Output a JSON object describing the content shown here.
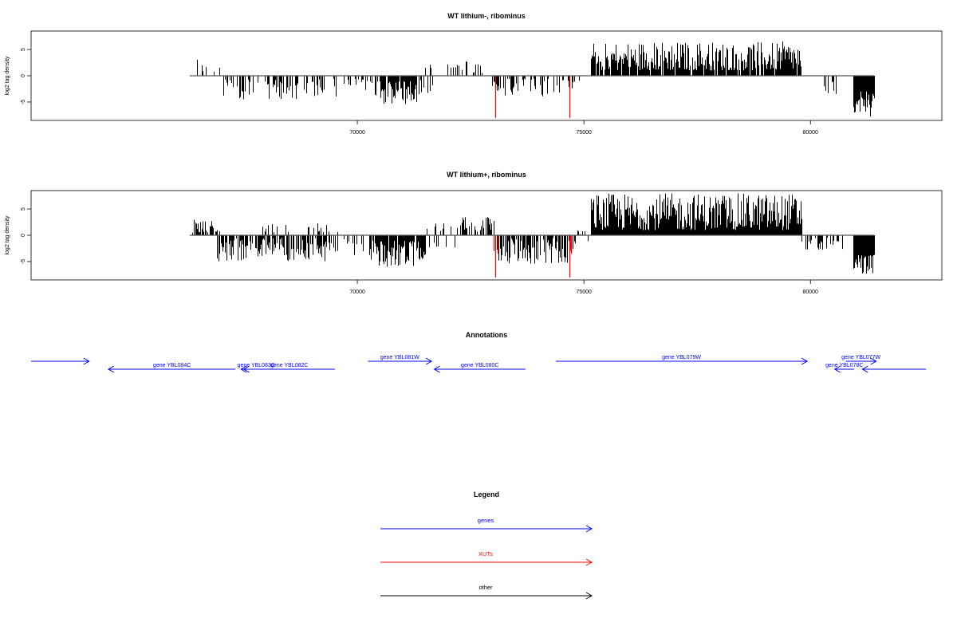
{
  "chart_data": [
    {
      "type": "bar",
      "title": "WT lithium-, ribominus",
      "ylabel": "log2 tag density",
      "xlim": [
        62800,
        82900
      ],
      "ylim": [
        -8.5,
        8.5
      ],
      "x_ticks": [
        70000,
        75000,
        80000
      ],
      "x_tick_labels": [
        "70000",
        "75000",
        "80000"
      ],
      "y_ticks": [
        -5,
        0,
        5
      ],
      "y_tick_labels": [
        "-5",
        "0",
        "5"
      ],
      "baseline_range": [
        66300,
        81400
      ],
      "signal_regions": [
        {
          "from": 66350,
          "to": 66950,
          "min": 0.5,
          "max": 3.5,
          "density": 0.25
        },
        {
          "from": 67000,
          "to": 69200,
          "min": -4.5,
          "max": -0.5,
          "density": 0.4
        },
        {
          "from": 69000,
          "to": 70600,
          "min": -4.0,
          "max": -0.5,
          "density": 0.3
        },
        {
          "from": 70500,
          "to": 71300,
          "min": -5.5,
          "max": -1.0,
          "density": 0.9
        },
        {
          "from": 71300,
          "to": 71700,
          "min": -3.5,
          "max": -0.5,
          "density": 0.3
        },
        {
          "from": 71500,
          "to": 72200,
          "min": 0.5,
          "max": 2.2,
          "density": 0.2
        },
        {
          "from": 72100,
          "to": 72900,
          "min": 0.5,
          "max": 3.0,
          "density": 0.35
        },
        {
          "from": 72900,
          "to": 74800,
          "min": -4.0,
          "max": -0.5,
          "density": 0.3
        },
        {
          "from": 74900,
          "to": 75100,
          "min": -1.0,
          "max": -0.5,
          "density": 0.2
        },
        {
          "from": 75150,
          "to": 79800,
          "min": 1.0,
          "max": 6.5,
          "density": 0.9
        },
        {
          "from": 80300,
          "to": 80600,
          "min": -3.5,
          "max": -0.5,
          "density": 0.3
        },
        {
          "from": 80950,
          "to": 81400,
          "min": -8.0,
          "max": -3.0,
          "density": 1.0
        }
      ],
      "highlight_bars": [
        {
          "x": 73050,
          "y": -8.0,
          "color": "#ff0000"
        },
        {
          "x": 74680,
          "y": -8.0,
          "color": "#ff0000"
        }
      ]
    },
    {
      "type": "bar",
      "title": "WT lithium+, ribominus",
      "ylabel": "log2 tag density",
      "xlim": [
        62800,
        82900
      ],
      "ylim": [
        -8.5,
        8.5
      ],
      "x_ticks": [
        70000,
        75000,
        80000
      ],
      "x_tick_labels": [
        "70000",
        "75000",
        "80000"
      ],
      "y_ticks": [
        -5,
        0,
        5
      ],
      "y_tick_labels": [
        "-5",
        "0",
        "5"
      ],
      "baseline_range": [
        66300,
        81400
      ],
      "signal_regions": [
        {
          "from": 66350,
          "to": 66950,
          "min": 0.5,
          "max": 3.0,
          "density": 0.6
        },
        {
          "from": 66900,
          "to": 69400,
          "min": -5.0,
          "max": -0.5,
          "density": 0.7
        },
        {
          "from": 67900,
          "to": 69600,
          "min": 0.5,
          "max": 2.5,
          "density": 0.15
        },
        {
          "from": 69400,
          "to": 70300,
          "min": -4.0,
          "max": -0.5,
          "density": 0.3
        },
        {
          "from": 70300,
          "to": 71500,
          "min": -6.0,
          "max": -1.0,
          "density": 0.95
        },
        {
          "from": 71500,
          "to": 72200,
          "min": -2.5,
          "max": 2.5,
          "density": 0.3
        },
        {
          "from": 72200,
          "to": 73000,
          "min": 0.5,
          "max": 3.5,
          "density": 0.5
        },
        {
          "from": 73000,
          "to": 74800,
          "min": -5.5,
          "max": -0.5,
          "density": 0.7
        },
        {
          "from": 74800,
          "to": 75100,
          "min": -1.5,
          "max": 1.0,
          "density": 0.2
        },
        {
          "from": 75150,
          "to": 79800,
          "min": 1.0,
          "max": 8.0,
          "density": 1.0
        },
        {
          "from": 79800,
          "to": 80700,
          "min": -3.0,
          "max": -0.5,
          "density": 0.5
        },
        {
          "from": 80950,
          "to": 81400,
          "min": -7.5,
          "max": -3.5,
          "density": 1.0
        }
      ],
      "highlight_bars": [
        {
          "x": 73050,
          "y": -8.0,
          "color": "#ff0000"
        },
        {
          "x": 74680,
          "y": -8.0,
          "color": "#ff0000"
        },
        {
          "x": 73000,
          "y": -3.0,
          "color": "#ff0000"
        },
        {
          "x": 73100,
          "y": -3.5,
          "color": "#ff0000"
        },
        {
          "x": 74700,
          "y": -3.0,
          "color": "#ff0000"
        },
        {
          "x": 74720,
          "y": -3.5,
          "color": "#ff0000"
        }
      ]
    }
  ],
  "annotations": {
    "title": "Annotations",
    "genes": [
      {
        "label": "",
        "start": 62800,
        "end": 63850,
        "strand": "+",
        "row": 0,
        "color": "#0000ff"
      },
      {
        "label": "gene YBL084C",
        "start": 64200,
        "end": 66500,
        "strand": "-",
        "row": 1,
        "color": "#0000ff"
      },
      {
        "label": "gene YBL083C",
        "start": 66600,
        "end": 67150,
        "strand": "-",
        "row": 1,
        "color": "#0000ff"
      },
      {
        "label": "gene YBL082C",
        "start": 66650,
        "end": 68300,
        "strand": "-",
        "row": 1,
        "color": "#0000ff"
      },
      {
        "label": "gene YBL081W",
        "start": 68900,
        "end": 70050,
        "strand": "+",
        "row": 0,
        "color": "#0000ff"
      },
      {
        "label": "gene YBL080C",
        "start": 70100,
        "end": 71750,
        "strand": "-",
        "row": 1,
        "color": "#0000ff"
      },
      {
        "label": "gene YBL079W",
        "start": 72300,
        "end": 76850,
        "strand": "+",
        "row": 0,
        "color": "#0000ff"
      },
      {
        "label": "gene YBL078C",
        "start": 77350,
        "end": 77700,
        "strand": "-",
        "row": 1,
        "color": "#0000ff"
      },
      {
        "label": "gene YBL077W",
        "start": 77550,
        "end": 78100,
        "strand": "+",
        "row": 0,
        "color": "#0000ff"
      },
      {
        "label": "",
        "start": 77850,
        "end": 79000,
        "strand": "-",
        "row": 1,
        "color": "#0000ff"
      }
    ]
  },
  "legend": {
    "title": "Legend",
    "items": [
      {
        "label": "genes",
        "color": "#0000ff"
      },
      {
        "label": "XUTs",
        "color": "#ff0000"
      },
      {
        "label": "other",
        "color": "#000000"
      }
    ]
  }
}
